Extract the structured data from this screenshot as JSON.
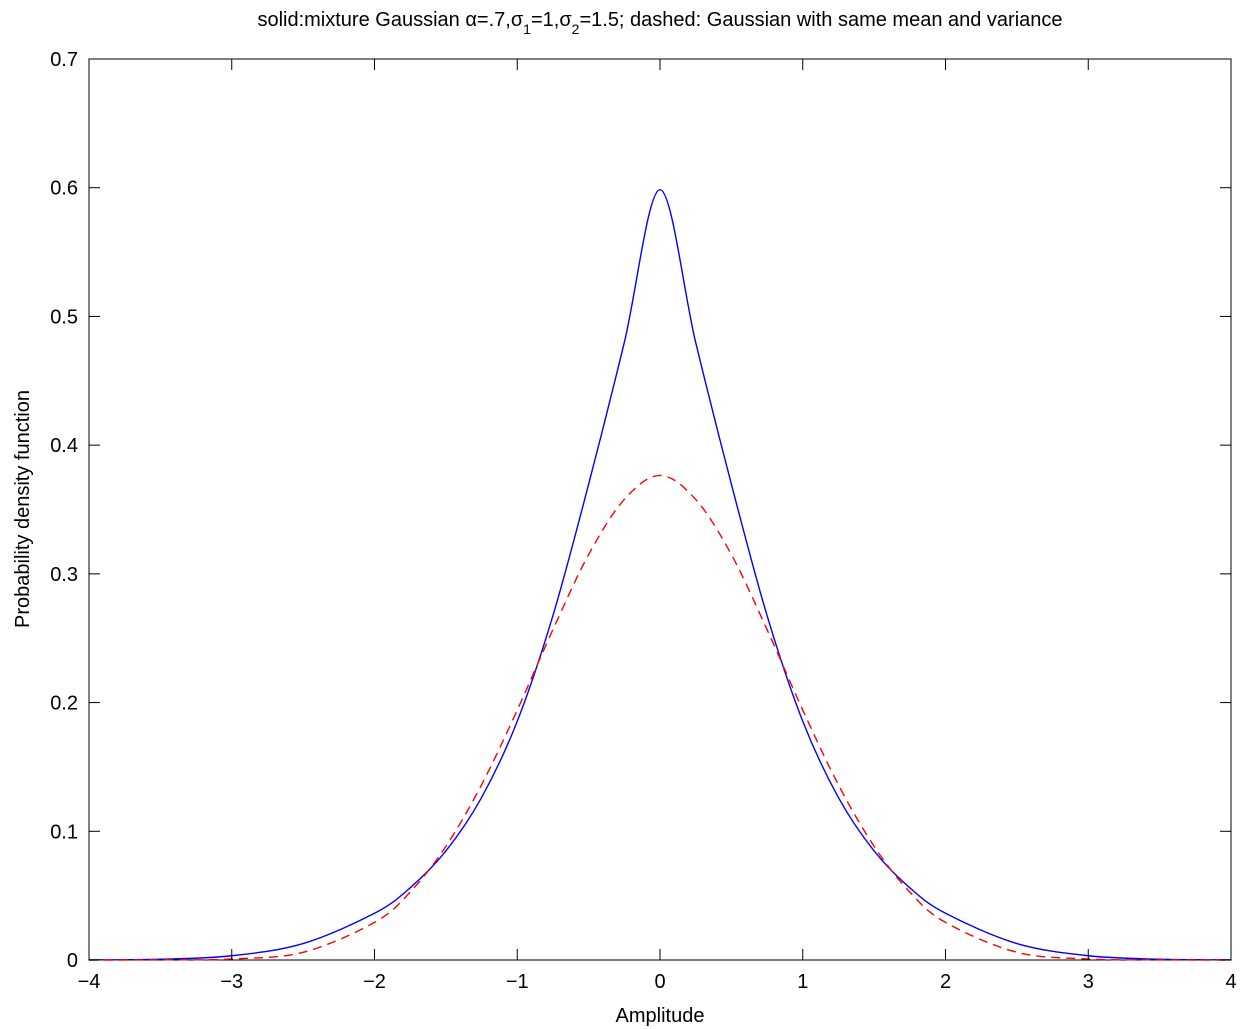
{
  "chart_data": {
    "type": "line",
    "title": {
      "segments": [
        {
          "text": "solid:mixture Gaussian ",
          "style": "normal"
        },
        {
          "text": "α",
          "style": "normal"
        },
        {
          "text": "=.7,",
          "style": "normal"
        },
        {
          "text": "σ",
          "style": "normal"
        },
        {
          "text": "1",
          "style": "sub"
        },
        {
          "text": "=1,",
          "style": "normal"
        },
        {
          "text": "σ",
          "style": "normal"
        },
        {
          "text": "2",
          "style": "sub"
        },
        {
          "text": "=1.5; dashed: Gaussian with same mean and variance",
          "style": "normal"
        }
      ]
    },
    "xlabel": "Amplitude",
    "ylabel": "Probability density function",
    "xlim": [
      -4,
      4
    ],
    "ylim": [
      0,
      0.7
    ],
    "xticks": [
      -4,
      -3,
      -2,
      -1,
      0,
      1,
      2,
      3,
      4
    ],
    "xtick_labels": [
      "−4",
      "−3",
      "−2",
      "−1",
      "0",
      "1",
      "2",
      "3",
      "4"
    ],
    "yticks": [
      0,
      0.1,
      0.2,
      0.3,
      0.4,
      0.5,
      0.6,
      0.7
    ],
    "ytick_labels": [
      "0",
      "0.1",
      "0.2",
      "0.3",
      "0.4",
      "0.5",
      "0.6",
      "0.7"
    ],
    "grid": false,
    "series": [
      {
        "style": "solid",
        "color": "#0000ff",
        "x": [
          -4,
          -3.5,
          -3,
          -2.5,
          -2,
          -1.75,
          -1.5,
          -1.25,
          -1,
          -0.75,
          -0.5,
          -0.25,
          0,
          0.25,
          0.5,
          0.75,
          1,
          1.25,
          1.5,
          1.75,
          2,
          2.5,
          3,
          3.5,
          4
        ],
        "y": [
          0.0001,
          0.0006,
          0.0033,
          0.0128,
          0.0363,
          0.0561,
          0.0847,
          0.1262,
          0.1855,
          0.2676,
          0.3697,
          0.4798,
          0.5985,
          0.4798,
          0.3697,
          0.2676,
          0.1855,
          0.1262,
          0.0847,
          0.0561,
          0.0363,
          0.0128,
          0.0033,
          0.0006,
          0.0001
        ]
      },
      {
        "style": "dashed",
        "color": "#ff0000",
        "x": [
          -4,
          -3.5,
          -3,
          -2.5,
          -2,
          -1.75,
          -1.5,
          -1.25,
          -1,
          -0.75,
          -0.5,
          -0.25,
          0,
          0.25,
          0.5,
          0.75,
          1,
          1.25,
          1.5,
          1.75,
          2,
          2.5,
          3,
          3.5,
          4
        ],
        "y": [
          0,
          0.0001,
          0.0008,
          0.006,
          0.0292,
          0.0528,
          0.0883,
          0.1361,
          0.1942,
          0.2567,
          0.315,
          0.3578,
          0.3765,
          0.3578,
          0.315,
          0.2567,
          0.1942,
          0.1361,
          0.0883,
          0.0528,
          0.0292,
          0.006,
          0.0008,
          0.0001,
          0
        ]
      }
    ]
  }
}
